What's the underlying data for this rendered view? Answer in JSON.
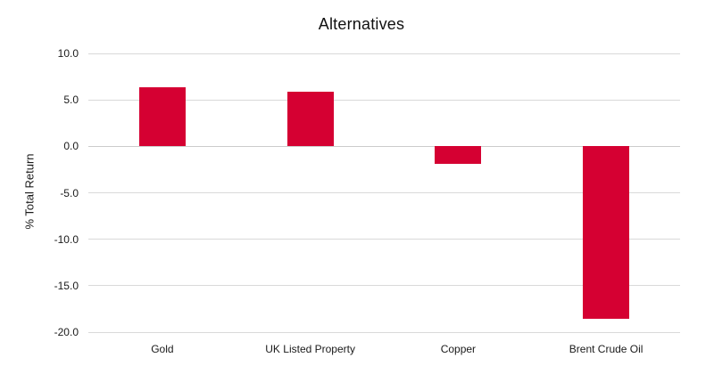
{
  "chart_data": {
    "type": "bar",
    "title": "Alternatives",
    "xlabel": "",
    "ylabel": "% Total Return",
    "categories": [
      "Gold",
      "UK Listed Property",
      "Copper",
      "Brent Crude Oil"
    ],
    "values": [
      6.4,
      5.9,
      -1.9,
      -18.6
    ],
    "ylim": [
      -20.0,
      10.0
    ],
    "yticks": [
      10.0,
      5.0,
      0.0,
      -5.0,
      -10.0,
      -15.0,
      -20.0
    ],
    "ytick_labels": [
      "10.0",
      "5.0",
      "0.0",
      "-5.0",
      "-10.0",
      "-15.0",
      "-20.0"
    ],
    "grid": true,
    "legend_position": "none",
    "bar_color": "#D50032",
    "gridline_color": "#D9D9D9",
    "background_color": "#FFFFFF",
    "text_color": "#1A1A1A"
  }
}
